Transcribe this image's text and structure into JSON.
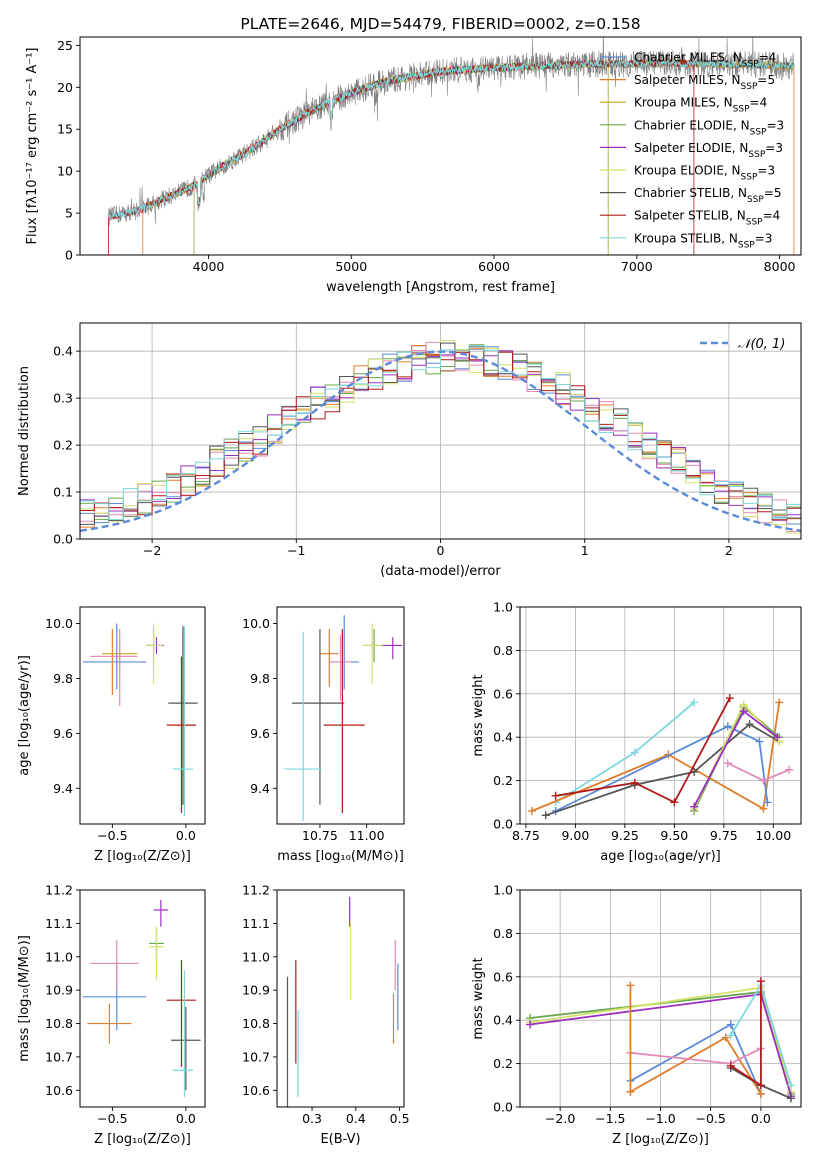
{
  "colors": {
    "chabrier_miles": "#5b8bd8",
    "salpeter_miles": "#e07d2b",
    "kroupa_miles": "#c9a227",
    "chabrier_elodie": "#6aa84f",
    "salpeter_elodie": "#9b30c0",
    "kroupa_elodie": "#d4e06a",
    "chabrier_stelib": "#555555",
    "salpeter_stelib": "#b01c1c",
    "kroupa_stelib": "#7dd8dc",
    "pink": "#e48ab8",
    "data": "#808080",
    "normal": "#5b8bd8"
  },
  "chart_data": [
    {
      "id": "spectrum",
      "type": "line",
      "title": "PLATE=2646, MJD=54479, FIBERID=0002, z=0.158",
      "xlabel": "wavelength [Angstrom, rest frame]",
      "ylabel": "Flux [fλ10⁻¹⁷ erg cm⁻² s⁻¹ A⁻¹]",
      "xlim": [
        3100,
        8150
      ],
      "ylim": [
        0,
        26
      ],
      "xticks": [
        4000,
        5000,
        6000,
        7000,
        8000
      ],
      "yticks": [
        0,
        5,
        10,
        15,
        20,
        25
      ],
      "grid": false,
      "legend_position": "top-right",
      "legend": [
        "Chabrier MILES, N_SSP=4",
        "Salpeter MILES, N_SSP=5",
        "Kroupa MILES, N_SSP=4",
        "Chabrier ELODIE, N_SSP=3",
        "Salpeter ELODIE, N_SSP=3",
        "Kroupa ELODIE, N_SSP=3",
        "Chabrier STELIB, N_SSP=5",
        "Salpeter STELIB, N_SSP=4",
        "Kroupa STELIB, N_SSP=3"
      ],
      "continuum": {
        "x": [
          3300,
          3400,
          3500,
          3600,
          3700,
          3800,
          3900,
          4000,
          4100,
          4200,
          4300,
          4400,
          4500,
          4600,
          4700,
          4800,
          4900,
          5000,
          5100,
          5200,
          5300,
          5400,
          5500,
          5600,
          5700,
          5800,
          6000,
          6200,
          6400,
          6600,
          6800,
          7000,
          7200,
          7400,
          7600,
          7800,
          8000,
          8100
        ],
        "y": [
          4.6,
          4.9,
          5.3,
          6.0,
          6.8,
          7.5,
          8.3,
          9.5,
          10.6,
          11.6,
          12.6,
          13.8,
          15.0,
          16.0,
          17.0,
          17.8,
          18.6,
          19.3,
          19.9,
          20.5,
          20.9,
          21.2,
          21.5,
          21.8,
          22.0,
          22.1,
          22.3,
          22.5,
          22.6,
          22.7,
          22.8,
          22.8,
          22.9,
          22.8,
          22.8,
          22.7,
          22.6,
          22.5
        ]
      }
    },
    {
      "id": "residuals",
      "type": "histogram",
      "xlabel": "(data-model)/error",
      "ylabel": "Normed distribution",
      "xlim": [
        -2.5,
        2.5
      ],
      "ylim": [
        0,
        0.46
      ],
      "xticks": [
        -2,
        -1,
        0,
        1,
        2
      ],
      "yticks": [
        0.0,
        0.1,
        0.2,
        0.3,
        0.4
      ],
      "grid": true,
      "legend_position": "top-right",
      "legend": [
        "𝒩(0, 1)"
      ],
      "bin_width": 0.1,
      "envelope": [
        0.05,
        0.055,
        0.06,
        0.075,
        0.085,
        0.1,
        0.11,
        0.125,
        0.145,
        0.165,
        0.18,
        0.195,
        0.21,
        0.23,
        0.25,
        0.27,
        0.29,
        0.305,
        0.32,
        0.335,
        0.35,
        0.36,
        0.37,
        0.38,
        0.385,
        0.39,
        0.39,
        0.385,
        0.38,
        0.37,
        0.36,
        0.345,
        0.335,
        0.32,
        0.3,
        0.28,
        0.26,
        0.245,
        0.225,
        0.205,
        0.185,
        0.165,
        0.145,
        0.125,
        0.11,
        0.095,
        0.08,
        0.065,
        0.055,
        0.045
      ]
    },
    {
      "id": "age_vs_Z",
      "type": "scatter",
      "xlabel": "Z [log₁₀(Z/Z⊙)]",
      "ylabel": "age  [log₁₀(age/yr)]",
      "xlim": [
        -0.72,
        0.13
      ],
      "ylim": [
        9.27,
        10.06
      ],
      "xticks": [
        -0.5,
        0.0
      ],
      "yticks": [
        9.4,
        9.6,
        9.8,
        10.0
      ],
      "grid": false,
      "points": [
        {
          "series": "chabrier_miles",
          "x": -0.47,
          "y": 9.86,
          "xerr": [
            0.23,
            0.2
          ],
          "yerr": [
            0.1,
            0.14
          ]
        },
        {
          "series": "salpeter_miles",
          "x": -0.5,
          "y": 9.88,
          "xerr": [
            0.15,
            0.15
          ],
          "yerr": [
            0.14,
            0.1
          ]
        },
        {
          "series": "kroupa_miles",
          "x": -0.45,
          "y": 9.89,
          "xerr": [
            0.12,
            0.12
          ],
          "yerr": [
            0.08,
            0.06
          ]
        },
        {
          "series": "pink",
          "x": -0.45,
          "y": 9.88,
          "xerr": [
            0.2,
            0.12
          ],
          "yerr": [
            0.18,
            0.1
          ]
        },
        {
          "series": "chabrier_elodie",
          "x": -0.22,
          "y": 9.92,
          "xerr": [
            0.05,
            0.05
          ],
          "yerr": [
            0.07,
            0.06
          ]
        },
        {
          "series": "salpeter_elodie",
          "x": -0.2,
          "y": 9.92,
          "xerr": [
            0.06,
            0.05
          ],
          "yerr": [
            0.03,
            0.03
          ]
        },
        {
          "series": "kroupa_elodie",
          "x": -0.22,
          "y": 9.92,
          "xerr": [
            0.05,
            0.06
          ],
          "yerr": [
            0.14,
            0.08
          ]
        },
        {
          "series": "chabrier_stelib",
          "x": -0.02,
          "y": 9.71,
          "xerr": [
            0.1,
            0.1
          ],
          "yerr": [
            0.37,
            0.28
          ]
        },
        {
          "series": "salpeter_stelib",
          "x": -0.03,
          "y": 9.63,
          "xerr": [
            0.1,
            0.1
          ],
          "yerr": [
            0.32,
            0.25
          ]
        },
        {
          "series": "kroupa_stelib",
          "x": -0.01,
          "y": 9.47,
          "xerr": [
            0.08,
            0.06
          ],
          "yerr": [
            0.17,
            0.52
          ]
        }
      ]
    },
    {
      "id": "age_vs_mass",
      "type": "scatter",
      "xlabel": "mass [log₁₀(M/M⊙)]",
      "ylabel": "",
      "xlim": [
        10.52,
        11.2
      ],
      "ylim": [
        9.27,
        10.06
      ],
      "xticks": [
        10.75,
        11.0
      ],
      "yticks": [
        9.4,
        9.6,
        9.8,
        10.0
      ],
      "grid": false,
      "points": [
        {
          "series": "chabrier_miles",
          "x": 10.88,
          "y": 9.86,
          "xerr": [
            0.08,
            0.08
          ],
          "yerr": [
            0.1,
            0.17
          ]
        },
        {
          "series": "salpeter_miles",
          "x": 10.8,
          "y": 9.89,
          "xerr": [
            0.05,
            0.05
          ],
          "yerr": [
            0.12,
            0.09
          ]
        },
        {
          "series": "pink",
          "x": 10.86,
          "y": 9.86,
          "xerr": [
            0.06,
            0.06
          ],
          "yerr": [
            0.14,
            0.1
          ]
        },
        {
          "series": "chabrier_elodie",
          "x": 11.04,
          "y": 9.92,
          "xerr": [
            0.06,
            0.06
          ],
          "yerr": [
            0.06,
            0.06
          ]
        },
        {
          "series": "salpeter_elodie",
          "x": 11.14,
          "y": 9.92,
          "xerr": [
            0.05,
            0.05
          ],
          "yerr": [
            0.05,
            0.03
          ]
        },
        {
          "series": "kroupa_elodie",
          "x": 11.03,
          "y": 9.92,
          "xerr": [
            0.05,
            0.05
          ],
          "yerr": [
            0.14,
            0.08
          ]
        },
        {
          "series": "chabrier_stelib",
          "x": 10.75,
          "y": 9.71,
          "xerr": [
            0.15,
            0.13
          ],
          "yerr": [
            0.37,
            0.27
          ]
        },
        {
          "series": "salpeter_stelib",
          "x": 10.87,
          "y": 9.63,
          "xerr": [
            0.1,
            0.12
          ],
          "yerr": [
            0.32,
            0.35
          ]
        },
        {
          "series": "kroupa_stelib",
          "x": 10.66,
          "y": 9.47,
          "xerr": [
            0.1,
            0.1
          ],
          "yerr": [
            0.19,
            0.5
          ]
        }
      ]
    },
    {
      "id": "weight_vs_age",
      "type": "line",
      "xlabel": "age  [log₁₀(age/yr)]",
      "ylabel": "mass weight",
      "xlim": [
        8.72,
        10.14
      ],
      "ylim": [
        0,
        1
      ],
      "xticks": [
        8.75,
        9.0,
        9.25,
        9.5,
        9.75,
        10.0
      ],
      "yticks": [
        0.0,
        0.2,
        0.4,
        0.6,
        0.8,
        1.0
      ],
      "grid": true,
      "series": [
        {
          "series": "kroupa_stelib",
          "x": [
            8.9,
            9.3,
            9.6
          ],
          "y": [
            0.1,
            0.33,
            0.56
          ]
        },
        {
          "series": "salpeter_miles",
          "x": [
            8.78,
            9.47,
            9.95,
            10.03
          ],
          "y": [
            0.06,
            0.32,
            0.07,
            0.56
          ]
        },
        {
          "series": "chabrier_miles",
          "x": [
            8.9,
            9.77,
            9.93,
            9.97
          ],
          "y": [
            0.06,
            0.45,
            0.38,
            0.1
          ]
        },
        {
          "series": "chabrier_stelib",
          "x": [
            8.85,
            9.3,
            9.6,
            9.88,
            10.03
          ],
          "y": [
            0.04,
            0.18,
            0.24,
            0.46,
            0.38
          ]
        },
        {
          "series": "salpeter_stelib",
          "x": [
            8.9,
            9.3,
            9.5,
            9.78
          ],
          "y": [
            0.13,
            0.19,
            0.1,
            0.58
          ]
        },
        {
          "series": "pink",
          "x": [
            9.77,
            9.95,
            10.08
          ],
          "y": [
            0.28,
            0.2,
            0.25
          ]
        },
        {
          "series": "chabrier_elodie",
          "x": [
            9.6,
            9.85,
            10.03
          ],
          "y": [
            0.06,
            0.54,
            0.4
          ]
        },
        {
          "series": "kroupa_elodie",
          "x": [
            9.6,
            9.85,
            10.03
          ],
          "y": [
            0.07,
            0.55,
            0.38
          ]
        },
        {
          "series": "salpeter_elodie",
          "x": [
            9.6,
            9.85,
            10.02
          ],
          "y": [
            0.08,
            0.52,
            0.4
          ]
        }
      ]
    },
    {
      "id": "mass_vs_Z",
      "type": "scatter",
      "xlabel": "Z [log₁₀(Z/Z⊙)]",
      "ylabel": "mass [log₁₀(M/M⊙)]",
      "xlim": [
        -0.72,
        0.13
      ],
      "ylim": [
        10.55,
        11.2
      ],
      "xticks": [
        -0.5,
        0.0
      ],
      "yticks": [
        10.6,
        10.7,
        10.8,
        10.9,
        11.0,
        11.1,
        11.2
      ],
      "grid": false,
      "points": [
        {
          "series": "chabrier_miles",
          "x": -0.47,
          "y": 10.88,
          "xerr": [
            0.23,
            0.2
          ],
          "yerr": [
            0.1,
            0.1
          ]
        },
        {
          "series": "salpeter_miles",
          "x": -0.52,
          "y": 10.8,
          "xerr": [
            0.15,
            0.15
          ],
          "yerr": [
            0.06,
            0.06
          ]
        },
        {
          "series": "pink",
          "x": -0.47,
          "y": 10.98,
          "xerr": [
            0.18,
            0.15
          ],
          "yerr": [
            0.08,
            0.07
          ]
        },
        {
          "series": "chabrier_elodie",
          "x": -0.2,
          "y": 11.04,
          "xerr": [
            0.05,
            0.05
          ],
          "yerr": [
            0.05,
            0.05
          ]
        },
        {
          "series": "salpeter_elodie",
          "x": -0.17,
          "y": 11.14,
          "xerr": [
            0.05,
            0.05
          ],
          "yerr": [
            0.05,
            0.03
          ]
        },
        {
          "series": "kroupa_elodie",
          "x": -0.2,
          "y": 11.03,
          "xerr": [
            0.05,
            0.05
          ],
          "yerr": [
            0.1,
            0.06
          ]
        },
        {
          "series": "chabrier_stelib",
          "x": 0.0,
          "y": 10.75,
          "xerr": [
            0.1,
            0.1
          ],
          "yerr": [
            0.15,
            0.1
          ]
        },
        {
          "series": "salpeter_stelib",
          "x": -0.03,
          "y": 10.87,
          "xerr": [
            0.1,
            0.1
          ],
          "yerr": [
            0.2,
            0.12
          ]
        },
        {
          "series": "kroupa_stelib",
          "x": -0.01,
          "y": 10.66,
          "xerr": [
            0.08,
            0.06
          ],
          "yerr": [
            0.08,
            0.3
          ]
        }
      ]
    },
    {
      "id": "mass_vs_ebv",
      "type": "scatter",
      "xlabel": "E(B-V)",
      "ylabel": "",
      "xlim": [
        0.22,
        0.51
      ],
      "ylim": [
        10.55,
        11.2
      ],
      "xticks": [
        0.3,
        0.4,
        0.5
      ],
      "yticks": [
        10.6,
        10.7,
        10.8,
        10.9,
        11.0,
        11.1,
        11.2
      ],
      "grid": false,
      "points": [
        {
          "series": "chabrier_stelib",
          "x": 0.244,
          "y": 10.75,
          "yerr": [
            0.2,
            0.19
          ]
        },
        {
          "series": "salpeter_stelib",
          "x": 0.263,
          "y": 10.83,
          "yerr": [
            0.15,
            0.16
          ]
        },
        {
          "series": "kroupa_stelib",
          "x": 0.268,
          "y": 10.66,
          "yerr": [
            0.08,
            0.18
          ]
        },
        {
          "series": "salpeter_elodie",
          "x": 0.386,
          "y": 11.14,
          "yerr": [
            0.05,
            0.04
          ]
        },
        {
          "series": "kroupa_elodie",
          "x": 0.388,
          "y": 10.98,
          "yerr": [
            0.11,
            0.12
          ]
        },
        {
          "series": "salpeter_miles",
          "x": 0.486,
          "y": 10.81,
          "yerr": [
            0.07,
            0.08
          ]
        },
        {
          "series": "pink",
          "x": 0.49,
          "y": 10.98,
          "yerr": [
            0.08,
            0.07
          ]
        },
        {
          "series": "chabrier_miles",
          "x": 0.496,
          "y": 10.88,
          "yerr": [
            0.1,
            0.1
          ]
        }
      ]
    },
    {
      "id": "weight_vs_Z",
      "type": "line",
      "xlabel": "Z [log₁₀(Z/Z⊙)]",
      "ylabel": "mass weight",
      "xlim": [
        -2.4,
        0.4
      ],
      "ylim": [
        0,
        1
      ],
      "xticks": [
        -2.0,
        -1.5,
        -1.0,
        -0.5,
        0.0
      ],
      "yticks": [
        0.0,
        0.2,
        0.4,
        0.6,
        0.8,
        1.0
      ],
      "grid": true,
      "series": [
        {
          "series": "chabrier_elodie",
          "x": [
            -2.3,
            0.0,
            0.3
          ],
          "y": [
            0.41,
            0.53,
            0.06
          ]
        },
        {
          "series": "kroupa_elodie",
          "x": [
            -2.3,
            0.0,
            0.3
          ],
          "y": [
            0.39,
            0.55,
            0.07
          ]
        },
        {
          "series": "salpeter_elodie",
          "x": [
            -2.3,
            0.0,
            0.3
          ],
          "y": [
            0.38,
            0.52,
            0.05
          ]
        },
        {
          "series": "chabrier_miles",
          "x": [
            -1.3,
            -0.3,
            0.0
          ],
          "y": [
            0.12,
            0.38,
            0.06
          ]
        },
        {
          "series": "salpeter_miles",
          "x": [
            -1.3,
            -0.35,
            0.0
          ],
          "y": [
            0.07,
            0.32,
            0.06
          ]
        },
        {
          "series": "pink",
          "x": [
            -1.3,
            -0.3,
            0.0
          ],
          "y": [
            0.25,
            0.2,
            0.27
          ]
        },
        {
          "series": "kroupa_stelib",
          "x": [
            -0.3,
            0.0,
            0.3
          ],
          "y": [
            0.33,
            0.56,
            0.1
          ]
        },
        {
          "series": "chabrier_stelib",
          "x": [
            -0.3,
            0.0,
            0.3
          ],
          "y": [
            0.18,
            0.1,
            0.04
          ]
        },
        {
          "series": "salpeter_stelib",
          "x": [
            -0.3,
            0.0,
            0.0
          ],
          "y": [
            0.19,
            0.1,
            0.58
          ]
        },
        {
          "series": "salpeter_miles",
          "x": [
            -1.3,
            -1.3
          ],
          "y": [
            0.07,
            0.56
          ]
        }
      ]
    }
  ]
}
